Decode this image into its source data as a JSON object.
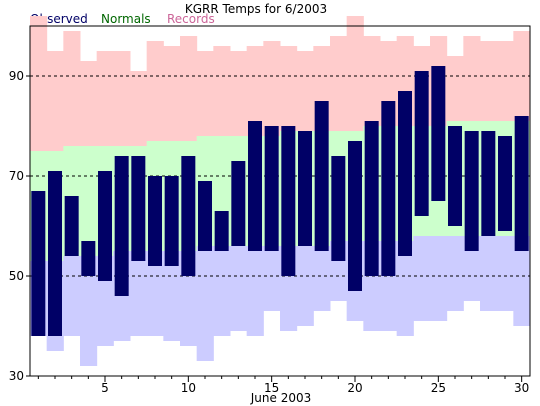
{
  "chart_data": {
    "type": "bar",
    "title": "KGRR Temps for 6/2003",
    "xlabel": "June 2003",
    "ylabel": "",
    "ylim": [
      30,
      100
    ],
    "xlim": [
      0.5,
      30.5
    ],
    "grid": "dashed horizontal at y-ticks",
    "legend": {
      "placement": "top-left",
      "entries": [
        {
          "label": "Observed",
          "color": "#000066"
        },
        {
          "label": "Normals",
          "color": "#006600"
        },
        {
          "label": "Records",
          "color": "#cc6699"
        }
      ]
    },
    "y_ticks": [
      30,
      50,
      70,
      90
    ],
    "x_ticks": [
      5,
      10,
      15,
      20,
      25,
      30
    ],
    "colors": {
      "record_band": "#ffcccc",
      "normal_band": "#ccffcc",
      "below_normal_band": "#ccccff",
      "observed_bar": "#000066"
    },
    "days": [
      1,
      2,
      3,
      4,
      5,
      6,
      7,
      8,
      9,
      10,
      11,
      12,
      13,
      14,
      15,
      16,
      17,
      18,
      19,
      20,
      21,
      22,
      23,
      24,
      25,
      26,
      27,
      28,
      29,
      30
    ],
    "series": [
      {
        "name": "Record High",
        "values": [
          102,
          95,
          99,
          93,
          95,
          95,
          91,
          97,
          96,
          98,
          95,
          96,
          95,
          96,
          97,
          96,
          95,
          96,
          98,
          102,
          98,
          97,
          98,
          96,
          98,
          94,
          98,
          97,
          97,
          99
        ]
      },
      {
        "name": "Normal High",
        "values": [
          75,
          75,
          76,
          76,
          76,
          76,
          76,
          77,
          77,
          77,
          78,
          78,
          78,
          78,
          78,
          79,
          79,
          79,
          79,
          79,
          80,
          80,
          80,
          80,
          80,
          81,
          81,
          81,
          81,
          81
        ]
      },
      {
        "name": "Normal Low",
        "values": [
          53,
          53,
          54,
          54,
          54,
          55,
          55,
          55,
          55,
          55,
          56,
          56,
          56,
          56,
          56,
          56,
          56,
          56,
          57,
          57,
          57,
          57,
          57,
          58,
          58,
          58,
          58,
          58,
          58,
          58
        ]
      },
      {
        "name": "Record Low",
        "values": [
          38,
          35,
          38,
          32,
          36,
          37,
          38,
          38,
          37,
          36,
          33,
          38,
          39,
          38,
          43,
          39,
          40,
          43,
          45,
          41,
          39,
          39,
          38,
          41,
          41,
          43,
          45,
          43,
          43,
          40
        ]
      },
      {
        "name": "Observed High",
        "values": [
          67,
          71,
          66,
          57,
          71,
          74,
          74,
          70,
          70,
          74,
          69,
          63,
          73,
          81,
          80,
          80,
          79,
          85,
          74,
          77,
          81,
          85,
          87,
          91,
          92,
          80,
          79,
          79,
          78,
          82
        ]
      },
      {
        "name": "Observed Low",
        "values": [
          38,
          38,
          54,
          50,
          49,
          46,
          53,
          52,
          52,
          50,
          55,
          55,
          56,
          55,
          55,
          50,
          56,
          55,
          53,
          47,
          50,
          50,
          54,
          62,
          65,
          60,
          55,
          58,
          59,
          55
        ]
      }
    ]
  }
}
